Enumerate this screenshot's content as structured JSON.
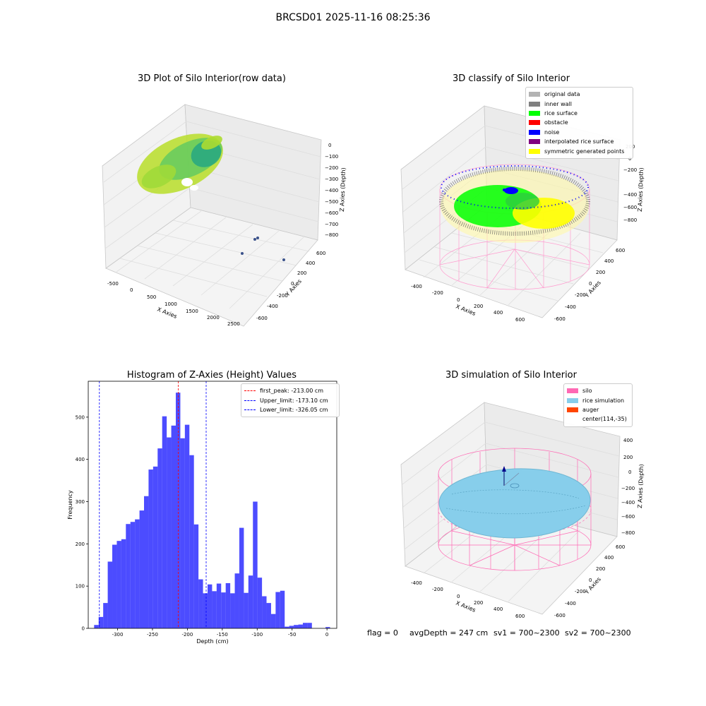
{
  "suptitle": "BRCSD01 2025-11-16 08:25:36",
  "panels": {
    "raw": {
      "title": "3D Plot of Silo Interior(row data)",
      "xlabel": "X Axies",
      "ylabel": "Y Axies",
      "zlabel": "Z Axies (Depth)",
      "xticks": [
        "-500",
        "0",
        "500",
        "1000",
        "1500",
        "2000",
        "2500"
      ],
      "yticks": [
        "-600",
        "-400",
        "-200",
        "0",
        "200",
        "400",
        "600"
      ],
      "zticks": [
        "0",
        "−100",
        "−200",
        "−300",
        "−400",
        "−500",
        "−600",
        "−700",
        "−800"
      ]
    },
    "classify": {
      "title": "3D classify of Silo Interior",
      "xlabel": "X Axies",
      "ylabel": "Y Axies",
      "zlabel": "Z Axies (Depth)",
      "xticks": [
        "-400",
        "-200",
        "0",
        "200",
        "400",
        "600"
      ],
      "yticks": [
        "-600",
        "-400",
        "-200",
        "0",
        "200",
        "400",
        "600"
      ],
      "zticks": [
        "200",
        "0",
        "−200",
        "−400",
        "−600",
        "−800"
      ],
      "legend": [
        {
          "label": "original data",
          "color": "#b3b3b3"
        },
        {
          "label": "inner wall",
          "color": "#808080"
        },
        {
          "label": "rice surface",
          "color": "#00ff00"
        },
        {
          "label": "obstacle",
          "color": "#ff0000"
        },
        {
          "label": "noise",
          "color": "#0000ff"
        },
        {
          "label": "interpolated rice surface",
          "color": "#800080"
        },
        {
          "label": "symmetric generated points",
          "color": "#ffff00"
        }
      ]
    },
    "simulation": {
      "title": "3D simulation of Silo Interior",
      "xlabel": "X Axies",
      "ylabel": "Y Axies",
      "zlabel": "Z Axies (Depth)",
      "xticks": [
        "-400",
        "-200",
        "0",
        "200",
        "400",
        "600"
      ],
      "yticks": [
        "-600",
        "-400",
        "-200",
        "0",
        "200",
        "400",
        "600"
      ],
      "zticks": [
        "400",
        "200",
        "0",
        "−200",
        "−400",
        "−600",
        "−800"
      ],
      "legend": [
        {
          "label": "silo",
          "color": "#ff69b4"
        },
        {
          "label": "rice simulation",
          "color": "#87ceeb"
        },
        {
          "label": "auger",
          "color": "#ff4500"
        },
        {
          "label": "center(114,-35)",
          "color": ""
        }
      ]
    }
  },
  "footer": {
    "flag": "flag = 0",
    "avg_depth": "avgDepth = 247 cm",
    "sv1": "sv1 = 700~2300",
    "sv2": "sv2 = 700~2300"
  },
  "chart_data": {
    "type": "bar",
    "title": "Histogram of Z-Axies (Height) Values",
    "xlabel": "Depth (cm)",
    "ylabel": "Frequency",
    "xlim": [
      -342,
      14
    ],
    "ylim": [
      0,
      585
    ],
    "xticks": [
      -300,
      -250,
      -200,
      -150,
      -100,
      -50,
      0
    ],
    "yticks": [
      0,
      100,
      200,
      300,
      400,
      500
    ],
    "bar_color": "#0000ff",
    "bin_width": 6.5,
    "bin_starts": [
      -333.6,
      -327.1,
      -320.6,
      -314.1,
      -307.6,
      -301.1,
      -294.6,
      -288.1,
      -281.6,
      -275.1,
      -268.6,
      -262.1,
      -255.6,
      -249.1,
      -242.6,
      -236.1,
      -229.6,
      -223.1,
      -216.6,
      -210.1,
      -203.6,
      -197.1,
      -190.6,
      -184.1,
      -177.6,
      -171.1,
      -164.6,
      -158.1,
      -151.6,
      -145.1,
      -138.6,
      -132.1,
      -125.6,
      -119.1,
      -112.6,
      -106.1,
      -99.6,
      -93.1,
      -86.6,
      -80.1,
      -73.6,
      -67.1,
      -60.6,
      -54.1,
      -47.6,
      -41.1,
      -34.6,
      -28.1,
      -21.6,
      -15.1,
      -8.6,
      -2.1
    ],
    "values": [
      8,
      27,
      60,
      158,
      198,
      207,
      211,
      247,
      252,
      258,
      279,
      313,
      376,
      383,
      426,
      502,
      452,
      480,
      558,
      450,
      482,
      410,
      246,
      116,
      83,
      104,
      88,
      106,
      85,
      107,
      83,
      130,
      238,
      84,
      125,
      300,
      120,
      76,
      60,
      34,
      86,
      89,
      4,
      6,
      8,
      9,
      13,
      13,
      0,
      0,
      0,
      3
    ],
    "lines": [
      {
        "label": "first_peak: -213.00 cm",
        "x": -213.0,
        "color": "#ff0000"
      },
      {
        "label": "Upper_limit: -173.10 cm",
        "x": -173.1,
        "color": "#0000ff"
      },
      {
        "label": "Lower_limit: -326.05 cm",
        "x": -326.05,
        "color": "#0000ff"
      }
    ]
  }
}
